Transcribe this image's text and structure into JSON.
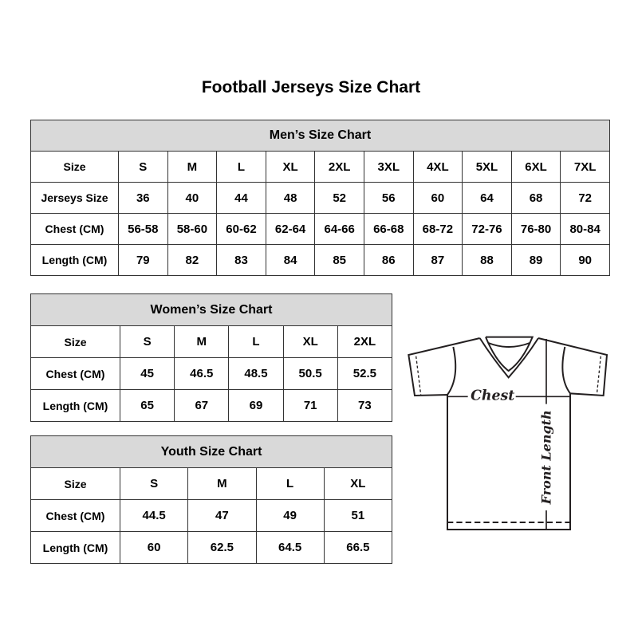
{
  "title": "Football Jerseys Size Chart",
  "men": {
    "title": "Men’s Size Chart",
    "rows": [
      [
        "Size",
        "S",
        "M",
        "L",
        "XL",
        "2XL",
        "3XL",
        "4XL",
        "5XL",
        "6XL",
        "7XL"
      ],
      [
        "Jerseys Size",
        "36",
        "40",
        "44",
        "48",
        "52",
        "56",
        "60",
        "64",
        "68",
        "72"
      ],
      [
        "Chest (CM)",
        "56-58",
        "58-60",
        "60-62",
        "62-64",
        "64-66",
        "66-68",
        "68-72",
        "72-76",
        "76-80",
        "80-84"
      ],
      [
        "Length (CM)",
        "79",
        "82",
        "83",
        "84",
        "85",
        "86",
        "87",
        "88",
        "89",
        "90"
      ]
    ]
  },
  "women": {
    "title": "Women’s Size Chart",
    "rows": [
      [
        "Size",
        "S",
        "M",
        "L",
        "XL",
        "2XL"
      ],
      [
        "Chest (CM)",
        "45",
        "46.5",
        "48.5",
        "50.5",
        "52.5"
      ],
      [
        "Length (CM)",
        "65",
        "67",
        "69",
        "71",
        "73"
      ]
    ]
  },
  "youth": {
    "title": "Youth Size Chart",
    "rows": [
      [
        "Size",
        "S",
        "M",
        "L",
        "XL"
      ],
      [
        "Chest (CM)",
        "44.5",
        "47",
        "49",
        "51"
      ],
      [
        "Length (CM)",
        "60",
        "62.5",
        "64.5",
        "66.5"
      ]
    ]
  },
  "diagram": {
    "chest_label": "Chest",
    "length_label": "Front Length",
    "icon": "t-shirt-diagram"
  },
  "colors": {
    "header_bg": "#d9d9d9",
    "border": "#333333"
  }
}
